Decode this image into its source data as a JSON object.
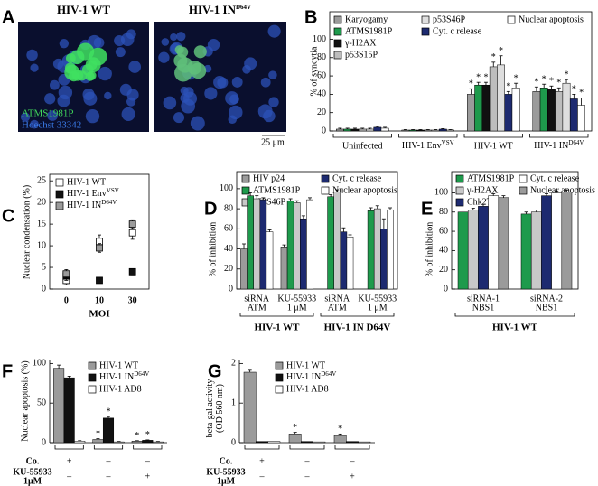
{
  "panel_a": {
    "panel": "A",
    "images": [
      {
        "title": "HIV-1 WT"
      },
      {
        "title": "HIV-1 IN",
        "title_sup": "D64V"
      }
    ],
    "stain_labels": [
      "ATMS1981P",
      "Hoechst 33342"
    ],
    "scale_bar": "25 μm"
  },
  "chart_data": [
    {
      "panel": "B",
      "type": "bar",
      "ylabel": "% of syncytia",
      "categories": [
        "Uninfected",
        "HIV-1 Env",
        "HIV-1 WT",
        "HIV-1 IN"
      ],
      "category_sups": [
        null,
        "VSV",
        null,
        "D64V"
      ],
      "ylim": [
        0,
        130
      ],
      "yticks": [
        0,
        20,
        40,
        60,
        80,
        100
      ],
      "series": [
        {
          "name": "Karyogamy",
          "color": "#9b9b9b",
          "values": [
            2,
            1,
            40,
            43
          ],
          "errors": [
            1,
            0.5,
            6,
            5
          ],
          "stars": [
            null,
            null,
            "*",
            "*"
          ]
        },
        {
          "name": "ATMS1981P",
          "color": "#1e9a4c",
          "values": [
            2,
            1,
            50,
            47
          ],
          "errors": [
            1,
            0.5,
            3,
            4
          ],
          "stars": [
            null,
            null,
            "*",
            "*"
          ]
        },
        {
          "name": "γ-H2AX",
          "color": "#111111",
          "values": [
            2,
            1,
            50,
            45
          ],
          "errors": [
            1,
            0.5,
            3,
            4
          ],
          "stars": [
            null,
            null,
            "*",
            "*"
          ]
        },
        {
          "name": "p53S15P",
          "color": "#bdbdbd",
          "values": [
            2,
            1,
            70,
            43
          ],
          "errors": [
            1,
            0.5,
            5,
            4
          ],
          "stars": [
            null,
            null,
            "*",
            "*"
          ]
        },
        {
          "name": "p53S46P",
          "color": "#dedede",
          "values": [
            2,
            1,
            72,
            52
          ],
          "errors": [
            1,
            0.5,
            10,
            4
          ],
          "stars": [
            null,
            null,
            "*",
            "*"
          ]
        },
        {
          "name": "Cyt. c release",
          "color": "#1d2a70",
          "values": [
            4,
            2,
            40,
            35
          ],
          "errors": [
            1,
            0.5,
            3,
            5
          ],
          "stars": [
            null,
            null,
            "*",
            "*"
          ]
        },
        {
          "name": "Nuclear apoptosis",
          "color": "#ffffff",
          "values": [
            3,
            1,
            47,
            28
          ],
          "errors": [
            1,
            0.5,
            5,
            8
          ],
          "stars": [
            null,
            null,
            "*",
            "*"
          ]
        }
      ]
    },
    {
      "panel": "C",
      "type": "dot",
      "ylabel": "Nuclear condensation (%)",
      "xlabel": "MOI",
      "categories": [
        "0",
        "10",
        "30"
      ],
      "ylim": [
        0,
        26.5
      ],
      "yticks": [
        0,
        5,
        10,
        15,
        20,
        25
      ],
      "series": [
        {
          "name": "HIV-1 WT",
          "color": "#ffffff",
          "values": [
            2,
            11,
            13
          ],
          "errors": [
            1,
            1.5,
            1.5
          ]
        },
        {
          "name": "HIV-1 Env",
          "name_sup": "VSV",
          "color": "#111111",
          "values": [
            3,
            2,
            4
          ],
          "errors": [
            1,
            0.5,
            0.7
          ]
        },
        {
          "name": "HIV-1 IN",
          "name_sup": "D64V",
          "color": "#9b9b9b",
          "values": [
            3.5,
            9.5,
            15
          ],
          "errors": [
            1,
            1,
            1
          ]
        }
      ]
    },
    {
      "panel": "D",
      "type": "bar",
      "ylabel": "% of inhibition",
      "categories": [
        [
          "siRNA",
          "ATM"
        ],
        [
          "KU-55933",
          "1 μM"
        ],
        [
          "siRNA",
          "ATM"
        ],
        [
          "KU-55933",
          "1 μM"
        ]
      ],
      "groups": [
        "HIV-1 WT",
        "HIV-1 IN D64V"
      ],
      "ylim": [
        0,
        117
      ],
      "yticks": [
        0,
        20,
        40,
        60,
        80,
        100
      ],
      "series": [
        {
          "name": "HIV p24",
          "color": "#9b9b9b",
          "values": [
            40,
            42,
            null,
            null
          ],
          "errors": [
            5,
            2,
            null,
            null
          ]
        },
        {
          "name": "ATMS1981P",
          "color": "#1e9a4c",
          "values": [
            93,
            88,
            92,
            78
          ],
          "errors": [
            3,
            2,
            2,
            3
          ]
        },
        {
          "name": "p53S46P",
          "color": "#c8c8c8",
          "values": [
            90,
            86,
            97,
            80
          ],
          "errors": [
            3,
            2,
            2,
            3
          ]
        },
        {
          "name": "Cyt. c release",
          "color": "#1d2a70",
          "values": [
            89,
            70,
            57,
            60
          ],
          "errors": [
            2,
            3,
            4,
            10
          ]
        },
        {
          "name": "Nuclear apoptosis",
          "color": "#ffffff",
          "values": [
            57,
            89,
            52,
            79
          ],
          "errors": [
            2,
            2,
            2,
            2
          ]
        }
      ]
    },
    {
      "panel": "E",
      "type": "bar",
      "ylabel": "% of inhibition",
      "categories": [
        [
          "siRNA-1",
          "NBS1"
        ],
        [
          "siRNA-2",
          "NBS1"
        ]
      ],
      "groups": [
        "HIV-1 WT"
      ],
      "ylim": [
        0,
        122
      ],
      "yticks": [
        0,
        20,
        40,
        60,
        80,
        100
      ],
      "series": [
        {
          "name": "ATMS1981P",
          "color": "#1e9a4c",
          "values": [
            80,
            78
          ],
          "errors": [
            2,
            2
          ]
        },
        {
          "name": "γ-H2AX",
          "color": "#c8c8c8",
          "values": [
            82,
            80
          ],
          "errors": [
            2,
            2
          ]
        },
        {
          "name": "Chk2T68P",
          "color": "#1d2a70",
          "values": [
            86,
            97
          ],
          "errors": [
            2,
            2
          ]
        },
        {
          "name": "Cyt. c release",
          "color": "#ffffff",
          "values": [
            97,
            100
          ],
          "errors": [
            2,
            2
          ]
        },
        {
          "name": "Nuclear apoptosis",
          "color": "#9b9b9b",
          "values": [
            95,
            101
          ],
          "errors": [
            2,
            2
          ]
        }
      ]
    },
    {
      "panel": "F",
      "type": "bar",
      "ylabel": "Nuclear apoptosis (%)",
      "ylim": [
        0,
        105
      ],
      "yticks": [
        0,
        50,
        100
      ],
      "conditions": [
        {
          "label": [
            "Co."
          ],
          "marks": [
            "+",
            "–",
            "–"
          ]
        },
        {
          "label": [
            "KU-55933",
            "1μM"
          ],
          "marks": [
            "–",
            "–",
            "+"
          ]
        }
      ],
      "series": [
        {
          "name": "HIV-1 WT",
          "color": "#9b9b9b",
          "values": [
            94,
            4,
            2
          ],
          "errors": [
            4,
            1,
            0.5
          ],
          "stars": [
            null,
            "*",
            "*"
          ]
        },
        {
          "name": "HIV-1 IN",
          "name_sup": "D64V",
          "color": "#111111",
          "values": [
            82,
            31,
            3
          ],
          "errors": [
            2,
            2,
            0.5
          ],
          "stars": [
            null,
            "*",
            "*"
          ]
        },
        {
          "name": "HIV-1 AD8",
          "color": "#ffffff",
          "values": [
            2,
            1,
            1
          ],
          "errors": [
            0.5,
            0.5,
            0.5
          ]
        }
      ]
    },
    {
      "panel": "G",
      "type": "bar",
      "ylabel": [
        "beta-gal activity",
        "(OD 560 nm)"
      ],
      "ylim": [
        0,
        2.1
      ],
      "yticks": [
        0,
        1,
        2
      ],
      "conditions": [
        {
          "label": [
            "Co."
          ],
          "marks": [
            "+",
            "–",
            "–"
          ]
        },
        {
          "label": [
            "KU-55933",
            "1μM"
          ],
          "marks": [
            "–",
            "–",
            "+"
          ]
        }
      ],
      "series": [
        {
          "name": "HIV-1 WT",
          "color": "#9b9b9b",
          "values": [
            1.78,
            0.22,
            0.18
          ],
          "errors": [
            0.05,
            0.04,
            0.04
          ],
          "stars": [
            null,
            "*",
            "*"
          ]
        },
        {
          "name": "HIV-1 IN",
          "name_sup": "D64V",
          "color": "#111111",
          "values": [
            0.03,
            0.03,
            0.03
          ]
        },
        {
          "name": "HIV-1 AD8",
          "color": "#ffffff",
          "values": [
            0.03,
            0.02,
            0.02
          ]
        }
      ]
    }
  ]
}
